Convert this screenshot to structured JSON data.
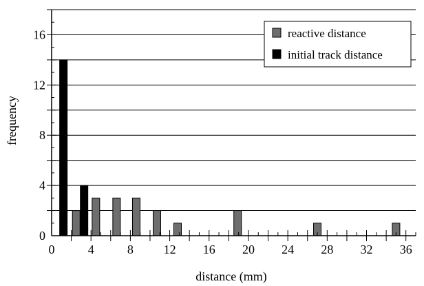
{
  "chart_data": {
    "type": "bar",
    "xlabel": "distance (mm)",
    "ylabel": "frequency",
    "xlim": [
      0,
      37
    ],
    "ylim": [
      0,
      18
    ],
    "x_ticks": [
      0,
      4,
      8,
      12,
      16,
      20,
      24,
      28,
      32,
      36
    ],
    "y_ticks": [
      0,
      4,
      8,
      12,
      16
    ],
    "grid": "horizontal",
    "legend_position": "top-right",
    "series": [
      {
        "name": "reactive distance",
        "color": "#6e6e6e",
        "points": [
          {
            "x": 2.5,
            "y": 2
          },
          {
            "x": 4.5,
            "y": 3
          },
          {
            "x": 6.6,
            "y": 3
          },
          {
            "x": 8.6,
            "y": 3
          },
          {
            "x": 10.7,
            "y": 2
          },
          {
            "x": 12.8,
            "y": 1
          },
          {
            "x": 18.9,
            "y": 2
          },
          {
            "x": 27.0,
            "y": 1
          },
          {
            "x": 35.0,
            "y": 1
          }
        ]
      },
      {
        "name": "initial track distance",
        "color": "#000000",
        "points": [
          {
            "x": 1.2,
            "y": 14
          },
          {
            "x": 3.3,
            "y": 4
          }
        ]
      }
    ]
  }
}
